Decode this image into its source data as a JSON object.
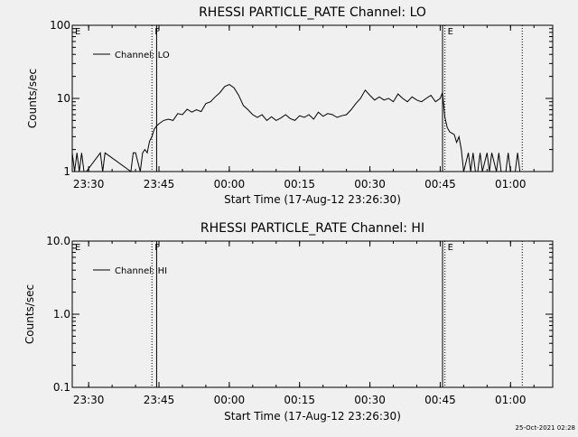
{
  "timestamp": "25-Oct-2021 02:28",
  "chart_data": [
    {
      "type": "line",
      "title": "RHESSI PARTICLE_RATE Channel: LO",
      "xlabel": "Start Time (17-Aug-12 23:26:30)",
      "ylabel": "Counts/sec",
      "yscale": "log",
      "ylim": [
        1,
        100
      ],
      "xlim": [
        "23:26:30",
        "01:09:00"
      ],
      "x_ticks": [
        "23:30",
        "23:45",
        "00:00",
        "00:15",
        "00:30",
        "00:45",
        "01:00"
      ],
      "y_ticks": [
        "1",
        "10",
        "100"
      ],
      "legend": "top-left",
      "markers": [
        {
          "label": "E",
          "time": "23:26:30",
          "style": "none"
        },
        {
          "label": "F",
          "time": "23:43:30",
          "style": "dotted"
        },
        {
          "label": "",
          "time": "23:44:30",
          "style": "solid"
        },
        {
          "label": "E",
          "time": "00:46:00",
          "style": "dotted"
        },
        {
          "label": "",
          "time": "00:45:30",
          "style": "solid"
        },
        {
          "label": "",
          "time": "01:02:30",
          "style": "dotted"
        }
      ],
      "series": [
        {
          "name": "Channel: LO",
          "color": "#000000",
          "x": [
            "23:26:30",
            "23:27:00",
            "23:27:30",
            "23:28:00",
            "23:28:30",
            "23:29:00",
            "23:29:30",
            "23:32:30",
            "23:33:00",
            "23:33:30",
            "23:39:00",
            "23:39:30",
            "23:40:00",
            "23:41:00",
            "23:41:30",
            "23:42:00",
            "23:42:30",
            "23:43:00",
            "23:43:30",
            "23:44:00",
            "23:44:30",
            "23:45:00",
            "23:46:00",
            "23:47:00",
            "23:48:00",
            "23:49:00",
            "23:50:00",
            "23:51:00",
            "23:52:00",
            "23:53:00",
            "23:54:00",
            "23:55:00",
            "23:56:00",
            "23:57:00",
            "23:58:00",
            "23:59:00",
            "00:00:00",
            "00:01:00",
            "00:02:00",
            "00:03:00",
            "00:04:00",
            "00:05:00",
            "00:06:00",
            "00:07:00",
            "00:08:00",
            "00:09:00",
            "00:10:00",
            "00:11:00",
            "00:12:00",
            "00:13:00",
            "00:14:00",
            "00:15:00",
            "00:16:00",
            "00:17:00",
            "00:18:00",
            "00:19:00",
            "00:20:00",
            "00:21:00",
            "00:22:00",
            "00:23:00",
            "00:24:00",
            "00:25:00",
            "00:26:00",
            "00:27:00",
            "00:28:00",
            "00:29:00",
            "00:30:00",
            "00:31:00",
            "00:32:00",
            "00:33:00",
            "00:34:00",
            "00:35:00",
            "00:36:00",
            "00:37:00",
            "00:38:00",
            "00:39:00",
            "00:40:00",
            "00:41:00",
            "00:42:00",
            "00:43:00",
            "00:44:00",
            "00:45:00",
            "00:45:30",
            "00:46:00",
            "00:46:30",
            "00:47:00",
            "00:48:00",
            "00:48:30",
            "00:49:00",
            "00:49:30",
            "00:50:00",
            "00:51:00",
            "00:51:30",
            "00:52:00",
            "00:52:30",
            "00:53:00",
            "00:53:30",
            "00:54:00",
            "00:55:00",
            "00:55:30",
            "00:56:00",
            "00:57:00",
            "00:57:30",
            "00:58:00",
            "00:59:00",
            "00:59:30",
            "01:00:00",
            "01:01:00",
            "01:01:30",
            "01:02:00"
          ],
          "y": [
            1.8,
            1.0,
            1.8,
            1.0,
            1.8,
            1.0,
            1.0,
            1.8,
            1.0,
            1.8,
            1.0,
            1.8,
            1.8,
            1.0,
            1.8,
            2.0,
            1.8,
            2.6,
            3.0,
            3.8,
            4.2,
            4.5,
            5.0,
            5.2,
            5.0,
            6.2,
            6.0,
            7.1,
            6.5,
            7.0,
            6.6,
            8.5,
            9.0,
            10.5,
            12.0,
            14.5,
            15.5,
            14.0,
            11.0,
            8.0,
            7.0,
            6.0,
            5.5,
            6.0,
            5.0,
            5.6,
            5.0,
            5.4,
            6.0,
            5.3,
            5.0,
            5.8,
            5.5,
            6.0,
            5.2,
            6.5,
            5.7,
            6.2,
            6.0,
            5.5,
            5.8,
            6.0,
            7.0,
            8.5,
            10.0,
            13.0,
            11.0,
            9.5,
            10.5,
            9.5,
            10.0,
            9.0,
            11.5,
            10.0,
            9.0,
            10.5,
            9.5,
            9.0,
            10.0,
            11.0,
            9.0,
            10.0,
            12.0,
            5.5,
            4.0,
            3.5,
            3.2,
            2.5,
            3.0,
            2.0,
            1.0,
            1.8,
            1.0,
            1.8,
            1.0,
            1.0,
            1.8,
            1.0,
            1.8,
            1.0,
            1.8,
            1.0,
            1.8,
            1.0,
            1.0,
            1.8,
            1.0,
            1.0,
            1.8,
            1.0
          ]
        }
      ]
    },
    {
      "type": "line",
      "title": "RHESSI PARTICLE_RATE Channel: HI",
      "xlabel": "Start Time (17-Aug-12 23:26:30)",
      "ylabel": "Counts/sec",
      "yscale": "log",
      "ylim": [
        0.1,
        10.0
      ],
      "xlim": [
        "23:26:30",
        "01:09:00"
      ],
      "x_ticks": [
        "23:30",
        "23:45",
        "00:00",
        "00:15",
        "00:30",
        "00:45",
        "01:00"
      ],
      "y_ticks": [
        "0.1",
        "1.0",
        "10.0"
      ],
      "legend": "top-left",
      "markers": [
        {
          "label": "E",
          "time": "23:26:30",
          "style": "none"
        },
        {
          "label": "F",
          "time": "23:43:30",
          "style": "dotted"
        },
        {
          "label": "",
          "time": "23:44:30",
          "style": "solid"
        },
        {
          "label": "E",
          "time": "00:46:00",
          "style": "dotted"
        },
        {
          "label": "",
          "time": "00:45:30",
          "style": "solid"
        },
        {
          "label": "",
          "time": "01:02:30",
          "style": "dotted"
        }
      ],
      "series": [
        {
          "name": "Channel: HI",
          "color": "#000000",
          "x": [],
          "y": []
        }
      ]
    }
  ]
}
